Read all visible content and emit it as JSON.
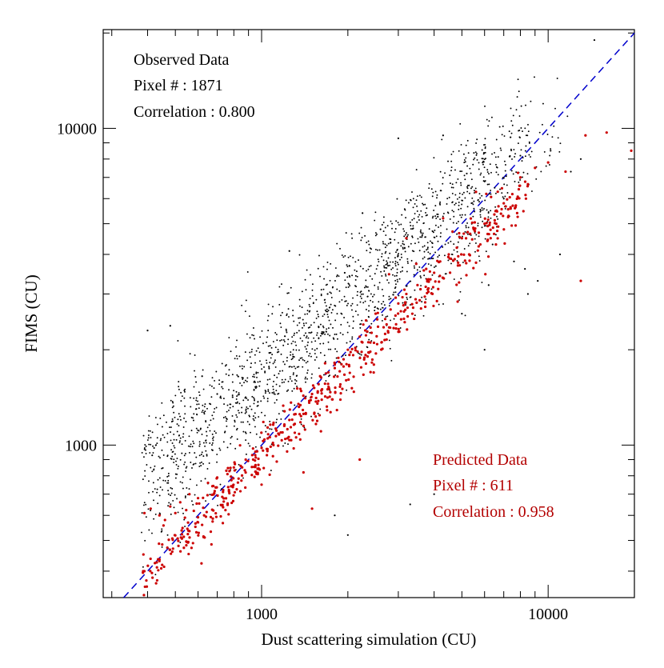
{
  "chart_data": {
    "type": "scatter",
    "xlabel": "Dust scattering simulation (CU)",
    "ylabel": "FIMS (CU)",
    "x_scale": "log",
    "y_scale": "log",
    "xlim": [
      280,
      20000
    ],
    "ylim": [
      330,
      20500
    ],
    "x_major_ticks": [
      {
        "value": 1000,
        "label": "1000"
      },
      {
        "value": 10000,
        "label": "10000"
      }
    ],
    "y_major_ticks": [
      {
        "value": 1000,
        "label": "1000"
      },
      {
        "value": 10000,
        "label": "10000"
      }
    ],
    "grid": false,
    "reference_line": {
      "type": "y=x",
      "style": "dashed",
      "color": "#0000cc"
    },
    "series": [
      {
        "key": "observed",
        "color": "#000000",
        "marker": "dot",
        "points": [
          [
            400,
            2300
          ],
          [
            480,
            2380
          ],
          [
            620,
            1650
          ],
          [
            700,
            1450
          ],
          [
            1250,
            4100
          ],
          [
            1700,
            3000
          ],
          [
            1950,
            3500
          ],
          [
            2250,
            5400
          ],
          [
            2600,
            4800
          ],
          [
            3000,
            9300
          ],
          [
            4300,
            9500
          ],
          [
            5200,
            7200
          ],
          [
            6000,
            6800
          ],
          [
            6400,
            4300
          ],
          [
            7000,
            6000
          ],
          [
            7600,
            3800
          ],
          [
            8000,
            8200
          ],
          [
            8300,
            3600
          ],
          [
            10200,
            8500
          ],
          [
            12000,
            7300
          ],
          [
            13000,
            8000
          ],
          [
            14500,
            19000
          ],
          [
            8500,
            3000
          ],
          [
            9200,
            3300
          ],
          [
            11000,
            4000
          ],
          [
            2000,
            520
          ],
          [
            1800,
            600
          ],
          [
            3300,
            650
          ],
          [
            4000,
            700
          ],
          [
            6000,
            2000
          ],
          [
            6200,
            3200
          ],
          [
            5000,
            2600
          ]
        ]
      },
      {
        "key": "predicted",
        "color": "#cc0000",
        "marker": "dot",
        "points": [
          [
            390,
            610
          ],
          [
            410,
            630
          ],
          [
            440,
            600
          ],
          [
            460,
            580
          ],
          [
            480,
            640
          ],
          [
            500,
            610
          ],
          [
            520,
            660
          ],
          [
            540,
            590
          ],
          [
            560,
            700
          ],
          [
            580,
            620
          ],
          [
            600,
            680
          ],
          [
            620,
            560
          ],
          [
            650,
            760
          ],
          [
            700,
            790
          ],
          [
            760,
            810
          ],
          [
            800,
            850
          ],
          [
            880,
            900
          ],
          [
            950,
            930
          ],
          [
            1000,
            980
          ],
          [
            1050,
            1050
          ],
          [
            1100,
            1000
          ],
          [
            1150,
            1080
          ],
          [
            1200,
            1150
          ],
          [
            1250,
            1200
          ],
          [
            1300,
            1250
          ],
          [
            1350,
            1320
          ],
          [
            1400,
            1150
          ],
          [
            1500,
            1450
          ],
          [
            1600,
            1650
          ],
          [
            1700,
            1500
          ],
          [
            1800,
            1750
          ],
          [
            1900,
            1800
          ],
          [
            2000,
            2000
          ],
          [
            2200,
            2200
          ],
          [
            2400,
            2350
          ],
          [
            2500,
            2600
          ],
          [
            2700,
            2500
          ],
          [
            3000,
            2800
          ],
          [
            3200,
            3000
          ],
          [
            3500,
            3200
          ],
          [
            3800,
            3100
          ],
          [
            4000,
            3500
          ],
          [
            4200,
            3800
          ],
          [
            4500,
            4000
          ],
          [
            4800,
            4200
          ],
          [
            5000,
            4500
          ],
          [
            5300,
            4000
          ],
          [
            5500,
            4800
          ],
          [
            5800,
            4300
          ],
          [
            6000,
            5000
          ],
          [
            6300,
            4500
          ],
          [
            6600,
            5500
          ],
          [
            7000,
            5800
          ],
          [
            7500,
            6200
          ],
          [
            8000,
            7000
          ],
          [
            9000,
            7500
          ],
          [
            10000,
            7800
          ],
          [
            11500,
            7300
          ],
          [
            13000,
            3300
          ],
          [
            16000,
            9700
          ],
          [
            19500,
            8500
          ],
          [
            13500,
            9500
          ],
          [
            1500,
            630
          ],
          [
            1400,
            820
          ],
          [
            2200,
            900
          ],
          [
            3200,
            4500
          ],
          [
            4300,
            5200
          ],
          [
            5600,
            6300
          ],
          [
            2400,
            1700
          ],
          [
            3600,
            2700
          ]
        ]
      }
    ],
    "annotations": [
      {
        "key": "observed",
        "color": "#000000",
        "lines": [
          "Observed Data",
          "Pixel # :  1871",
          "Correlation : 0.800"
        ]
      },
      {
        "key": "predicted",
        "color": "#b30000",
        "lines": [
          "Predicted Data",
          "Pixel # :   611",
          "Correlation : 0.958"
        ]
      }
    ]
  }
}
